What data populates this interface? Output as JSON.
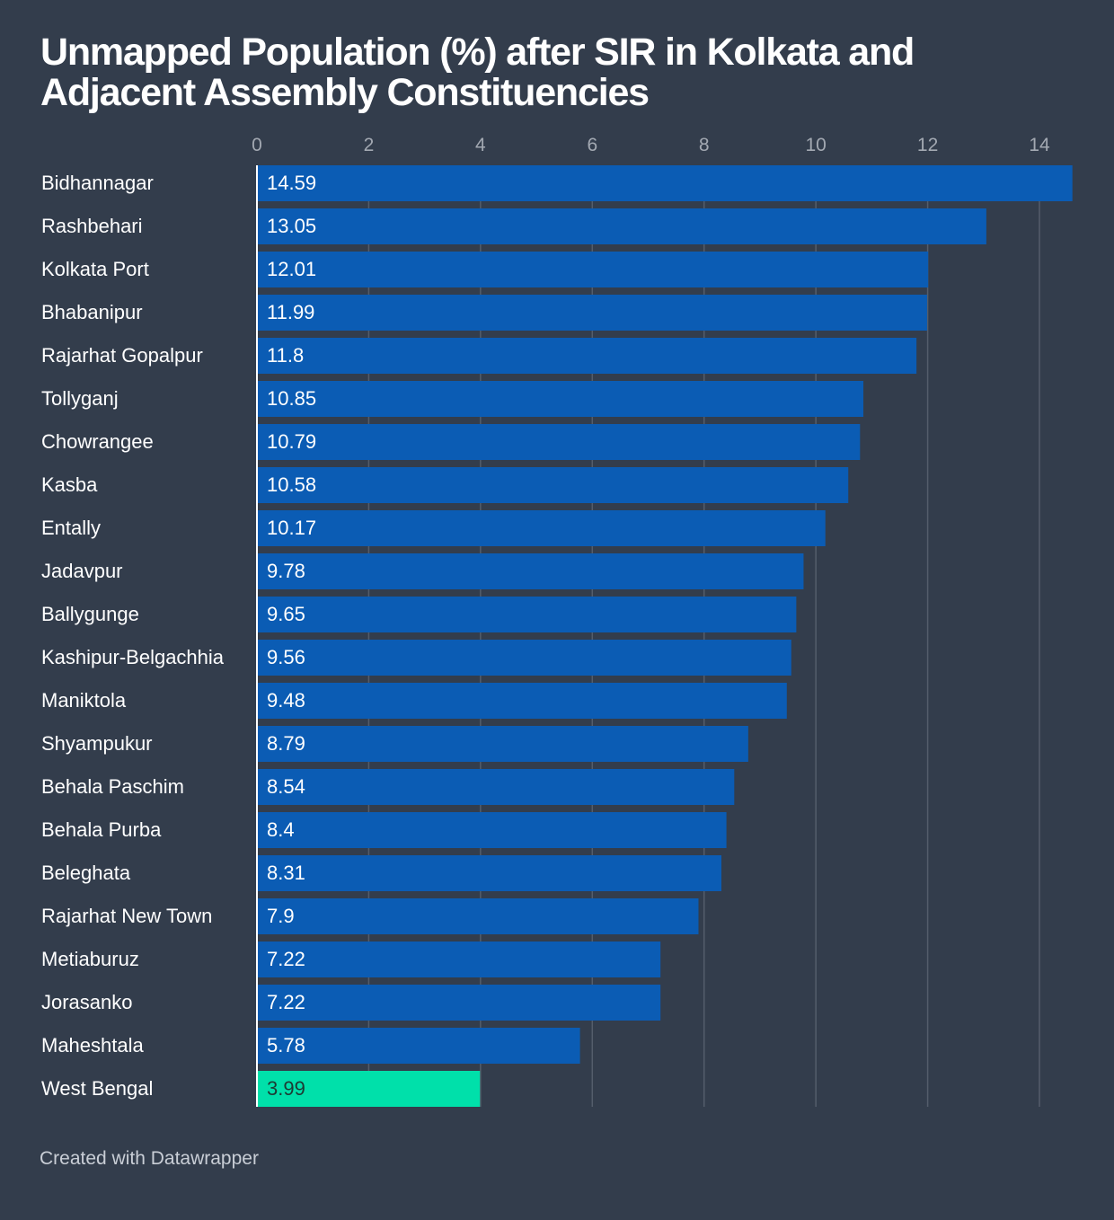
{
  "chart_data": {
    "type": "bar",
    "orientation": "horizontal",
    "title": "Unmapped Population (%) after SIR in Kolkata and Adjacent Assembly Constituencies",
    "xlabel": "",
    "ylabel": "",
    "xlim": [
      0,
      14.6
    ],
    "xticks": [
      0,
      2,
      4,
      6,
      8,
      10,
      12,
      14
    ],
    "grid": true,
    "tick_position": "top",
    "categories": [
      "Bidhannagar",
      "Rashbehari",
      "Kolkata Port",
      "Bhabanipur",
      "Rajarhat Gopalpur",
      "Tollyganj",
      "Chowrangee",
      "Kasba",
      "Entally",
      "Jadavpur",
      "Ballygunge",
      "Kashipur-Belgachhia",
      "Maniktola",
      "Shyampukur",
      "Behala Paschim",
      "Behala Purba",
      "Beleghata",
      "Rajarhat New Town",
      "Metiaburuz",
      "Jorasanko",
      "Maheshtala",
      "West Bengal"
    ],
    "values": [
      14.59,
      13.05,
      12.01,
      11.99,
      11.8,
      10.85,
      10.79,
      10.58,
      10.17,
      9.78,
      9.65,
      9.56,
      9.48,
      8.79,
      8.54,
      8.4,
      8.31,
      7.9,
      7.22,
      7.22,
      5.78,
      3.99
    ],
    "value_labels": [
      "14.59",
      "13.05",
      "12.01",
      "11.99",
      "11.8",
      "10.85",
      "10.79",
      "10.58",
      "10.17",
      "9.78",
      "9.65",
      "9.56",
      "9.48",
      "8.79",
      "8.54",
      "8.4",
      "8.31",
      "7.9",
      "7.22",
      "7.22",
      "5.78",
      "3.99"
    ],
    "highlight": "West Bengal",
    "colors": {
      "bar": "#0b5cb4",
      "highlight_bar": "#00e0aa",
      "bar_label": "#ffffff",
      "highlight_label": "#1d3a33",
      "grid": "#545d6b",
      "baseline": "#ffffff",
      "background": "#333d4c"
    }
  },
  "header": {
    "title": "Unmapped Population (%) after SIR in Kolkata and Adjacent Assembly Constituencies"
  },
  "footer": {
    "credit": "Created with Datawrapper"
  }
}
